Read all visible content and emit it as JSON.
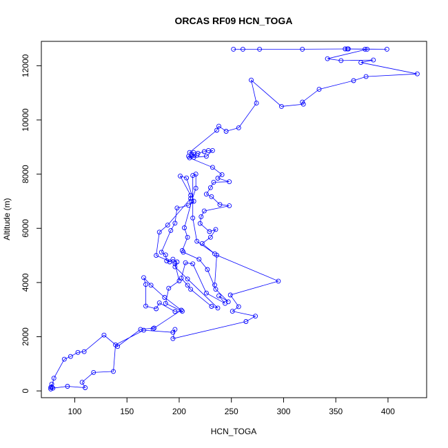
{
  "chart_data": {
    "type": "scatter",
    "title": "ORCAS RF09 HCN_TOGA",
    "xlabel": "HCN_TOGA",
    "ylabel": "Altitude (m)",
    "xlim": [
      68,
      437
    ],
    "ylim": [
      -250,
      12900
    ],
    "x_ticks": [
      100,
      150,
      200,
      250,
      300,
      350,
      400
    ],
    "y_ticks": [
      0,
      2000,
      4000,
      6000,
      8000,
      10000,
      12000
    ],
    "grid": false,
    "legend": "none",
    "style": {
      "marker": "open-circle",
      "connect_points": true
    },
    "series": [
      {
        "color": "#0000ff",
        "points": [
          [
            252,
            12610
          ],
          [
            261,
            12610
          ],
          [
            277,
            12610
          ],
          [
            318,
            12610
          ],
          [
            359,
            12620
          ],
          [
            362,
            12620
          ],
          [
            378,
            12610
          ],
          [
            399,
            12610
          ],
          [
            361,
            12620
          ],
          [
            380,
            12610
          ],
          [
            342,
            12260
          ],
          [
            355,
            12190
          ],
          [
            386,
            12210
          ],
          [
            374,
            12120
          ],
          [
            428,
            11700
          ],
          [
            379,
            11600
          ],
          [
            367,
            11450
          ],
          [
            334,
            11130
          ],
          [
            318,
            10660
          ],
          [
            319,
            10580
          ],
          [
            298,
            10500
          ],
          [
            269,
            11470
          ],
          [
            274,
            10620
          ],
          [
            257,
            9710
          ],
          [
            245,
            9580
          ],
          [
            238,
            9770
          ],
          [
            236,
            9620
          ],
          [
            210,
            8800
          ],
          [
            214,
            8790
          ],
          [
            218,
            8770
          ],
          [
            224,
            8830
          ],
          [
            228,
            8870
          ],
          [
            232,
            8870
          ],
          [
            226,
            8660
          ],
          [
            214,
            8620
          ],
          [
            217,
            8700
          ],
          [
            212,
            8720
          ],
          [
            212,
            8680
          ],
          [
            209,
            8660
          ],
          [
            210,
            8600
          ],
          [
            232,
            8250
          ],
          [
            241,
            7980
          ],
          [
            237,
            7850
          ],
          [
            248,
            7720
          ],
          [
            233,
            7700
          ],
          [
            230,
            7500
          ],
          [
            226,
            7260
          ],
          [
            231,
            7170
          ],
          [
            239,
            6880
          ],
          [
            248,
            6830
          ],
          [
            224,
            6640
          ],
          [
            221,
            6430
          ],
          [
            220,
            6180
          ],
          [
            229,
            5880
          ],
          [
            235,
            5960
          ],
          [
            230,
            5670
          ],
          [
            222,
            5440
          ],
          [
            234,
            5060
          ],
          [
            217,
            5520
          ],
          [
            213,
            6380
          ],
          [
            213,
            7950
          ],
          [
            216,
            8000
          ],
          [
            216,
            7480
          ],
          [
            212,
            7000
          ],
          [
            205,
            6020
          ],
          [
            208,
            5670
          ],
          [
            203,
            5180
          ],
          [
            204,
            5120
          ],
          [
            219,
            4860
          ],
          [
            227,
            4480
          ],
          [
            235,
            3750
          ],
          [
            247,
            3290
          ],
          [
            238,
            3510
          ],
          [
            244,
            3230
          ],
          [
            226,
            3610
          ],
          [
            213,
            4690
          ],
          [
            206,
            4730
          ],
          [
            202,
            4160
          ],
          [
            208,
            3900
          ],
          [
            211,
            3750
          ],
          [
            231,
            3120
          ],
          [
            237,
            3060
          ],
          [
            208,
            4130
          ],
          [
            196,
            4580
          ],
          [
            198,
            4760
          ],
          [
            194,
            4860
          ],
          [
            191,
            4760
          ],
          [
            188,
            4800
          ],
          [
            187,
            5020
          ],
          [
            183,
            5120
          ],
          [
            192,
            5920
          ],
          [
            196,
            6190
          ],
          [
            198,
            6750
          ],
          [
            209,
            6850
          ],
          [
            214,
            7000
          ],
          [
            207,
            7860
          ],
          [
            201,
            7930
          ],
          [
            211,
            7220
          ],
          [
            211,
            7100
          ],
          [
            189,
            6120
          ],
          [
            181,
            5860
          ],
          [
            178,
            5000
          ],
          [
            196,
            4700
          ],
          [
            200,
            4060
          ],
          [
            190,
            3790
          ],
          [
            187,
            3230
          ],
          [
            203,
            2940
          ],
          [
            196,
            2930
          ],
          [
            181,
            3250
          ],
          [
            178,
            3030
          ],
          [
            168,
            3130
          ],
          [
            168,
            3930
          ],
          [
            166,
            4180
          ],
          [
            173,
            3900
          ],
          [
            186,
            3450
          ],
          [
            202,
            2980
          ],
          [
            175,
            2290
          ],
          [
            176,
            2320
          ],
          [
            163,
            2270
          ],
          [
            141,
            1640
          ],
          [
            128,
            2060
          ],
          [
            109,
            1450
          ],
          [
            103,
            1420
          ],
          [
            96,
            1270
          ],
          [
            90,
            1170
          ],
          [
            80,
            470
          ],
          [
            78,
            140
          ],
          [
            78,
            250
          ],
          [
            77,
            130
          ],
          [
            77,
            70
          ],
          [
            79,
            100
          ],
          [
            93,
            170
          ],
          [
            110,
            120
          ],
          [
            107,
            320
          ],
          [
            118,
            680
          ],
          [
            137,
            720
          ],
          [
            139,
            1700
          ],
          [
            166,
            2240
          ],
          [
            194,
            2160
          ],
          [
            196,
            2270
          ],
          [
            194,
            1930
          ],
          [
            264,
            2560
          ],
          [
            273,
            2760
          ],
          [
            251,
            2940
          ],
          [
            257,
            3110
          ],
          [
            249,
            3540
          ],
          [
            295,
            4050
          ],
          [
            236,
            5010
          ],
          [
            234,
            3910
          ]
        ]
      }
    ]
  }
}
